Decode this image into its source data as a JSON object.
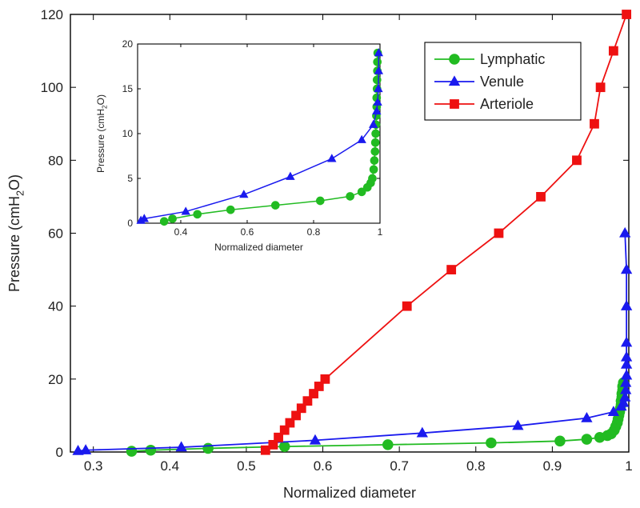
{
  "chart_data": [
    {
      "id": "main",
      "type": "line",
      "xlabel": "Normalized diameter",
      "ylabel_main": "Pressure (cmH",
      "ylabel_sub": "2",
      "ylabel_end": "O)",
      "xlim": [
        0.27,
        1.0
      ],
      "ylim": [
        0,
        120
      ],
      "xticks": [
        0.3,
        0.4,
        0.5,
        0.6,
        0.7,
        0.8,
        0.9,
        1.0
      ],
      "xtick_labels": [
        "0.3",
        "0.4",
        "0.5",
        "0.6",
        "0.7",
        "0.8",
        "0.9",
        "1"
      ],
      "yticks": [
        0,
        20,
        40,
        60,
        80,
        100,
        120
      ],
      "ytick_labels": [
        "0",
        "20",
        "40",
        "60",
        "80",
        "100",
        "120"
      ],
      "legend_position": "top-right",
      "series": [
        {
          "name": "Lymphatic",
          "color": "#22bb22",
          "marker": "circle",
          "points": [
            [
              0.35,
              0.2
            ],
            [
              0.375,
              0.5
            ],
            [
              0.45,
              1.0
            ],
            [
              0.55,
              1.5
            ],
            [
              0.685,
              2.0
            ],
            [
              0.82,
              2.5
            ],
            [
              0.91,
              3.0
            ],
            [
              0.945,
              3.5
            ],
            [
              0.962,
              4.0
            ],
            [
              0.972,
              4.5
            ],
            [
              0.977,
              5.0
            ],
            [
              0.981,
              6.0
            ],
            [
              0.983,
              7.0
            ],
            [
              0.985,
              8.0
            ],
            [
              0.986,
              9.0
            ],
            [
              0.987,
              10.0
            ],
            [
              0.988,
              11.0
            ],
            [
              0.989,
              12.0
            ],
            [
              0.99,
              13.0
            ],
            [
              0.99,
              14.0
            ],
            [
              0.991,
              15.0
            ],
            [
              0.991,
              16.0
            ],
            [
              0.992,
              17.0
            ],
            [
              0.992,
              18.0
            ],
            [
              0.993,
              19.0
            ]
          ]
        },
        {
          "name": "Venule",
          "color": "#1a1aee",
          "marker": "triangle",
          "points": [
            [
              0.28,
              0.3
            ],
            [
              0.29,
              0.5
            ],
            [
              0.415,
              1.3
            ],
            [
              0.59,
              3.2
            ],
            [
              0.73,
              5.2
            ],
            [
              0.855,
              7.2
            ],
            [
              0.945,
              9.3
            ],
            [
              0.98,
              11.0
            ],
            [
              0.99,
              12.5
            ],
            [
              0.993,
              13.5
            ],
            [
              0.995,
              15.0
            ],
            [
              0.996,
              17.0
            ],
            [
              0.996,
              19.0
            ],
            [
              0.997,
              21.0
            ],
            [
              0.997,
              24.0
            ],
            [
              0.997,
              26.0
            ],
            [
              0.997,
              30.0
            ],
            [
              0.997,
              40.0
            ],
            [
              0.997,
              50.0
            ],
            [
              0.995,
              60.0
            ]
          ]
        },
        {
          "name": "Arteriole",
          "color": "#ee1111",
          "marker": "square",
          "points": [
            [
              0.525,
              0.5
            ],
            [
              0.535,
              2.0
            ],
            [
              0.542,
              4.0
            ],
            [
              0.55,
              6.0
            ],
            [
              0.557,
              8.0
            ],
            [
              0.565,
              10.0
            ],
            [
              0.572,
              12.0
            ],
            [
              0.58,
              14.0
            ],
            [
              0.588,
              16.0
            ],
            [
              0.595,
              18.0
            ],
            [
              0.603,
              20.0
            ],
            [
              0.71,
              40.0
            ],
            [
              0.768,
              50.0
            ],
            [
              0.83,
              60.0
            ],
            [
              0.885,
              70.0
            ],
            [
              0.932,
              80.0
            ],
            [
              0.955,
              90.0
            ],
            [
              0.963,
              100.0
            ],
            [
              0.98,
              110.0
            ],
            [
              0.997,
              120.0
            ]
          ]
        }
      ]
    },
    {
      "id": "inset",
      "type": "line",
      "xlabel": "Normalized diameter",
      "ylabel_main": "Pressure (cmH",
      "ylabel_sub": "2",
      "ylabel_end": "O)",
      "xlim": [
        0.27,
        1.0
      ],
      "ylim": [
        0,
        20
      ],
      "xticks": [
        0.4,
        0.6,
        0.8,
        1.0
      ],
      "xtick_labels": [
        "0.4",
        "0.6",
        "0.8",
        "1"
      ],
      "yticks": [
        0,
        5,
        10,
        15,
        20
      ],
      "ytick_labels": [
        "0",
        "5",
        "10",
        "15",
        "20"
      ],
      "series_refs": [
        "Lymphatic",
        "Venule"
      ],
      "y_clip": 20
    }
  ]
}
